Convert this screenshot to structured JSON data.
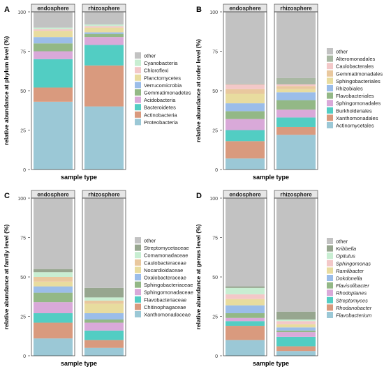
{
  "chart_data": [
    {
      "panel_letter": "A",
      "type": "bar",
      "stacked": true,
      "xlabel": "sample type",
      "ylabel": "relative abundance at phylum level (%)",
      "ylim": [
        0,
        100
      ],
      "yticks": [
        0,
        25,
        50,
        75,
        100
      ],
      "categories": [
        "endosphere",
        "rhizosphere"
      ],
      "legend_position": "right",
      "legend_italic": false,
      "series": [
        {
          "name": "Proteobacteria",
          "color": "#9bc8d6",
          "values": [
            43,
            40
          ]
        },
        {
          "name": "Actinobacteria",
          "color": "#d99a7e",
          "values": [
            9,
            26
          ]
        },
        {
          "name": "Bacteroidetes",
          "color": "#52cdc3",
          "values": [
            18,
            13
          ]
        },
        {
          "name": "Acidobacteria",
          "color": "#d9a9d9",
          "values": [
            5,
            5
          ]
        },
        {
          "name": "Gemmatimonadetes",
          "color": "#93b886",
          "values": [
            5,
            2
          ]
        },
        {
          "name": "Verrucomicrobia",
          "color": "#9bbde9",
          "values": [
            4,
            1
          ]
        },
        {
          "name": "Planctomycetes",
          "color": "#e8dc9f",
          "values": [
            4,
            3
          ]
        },
        {
          "name": "Chloroflexi",
          "color": "#f3c8c8",
          "values": [
            1,
            1
          ]
        },
        {
          "name": "Cyanobacteria",
          "color": "#c8eed2",
          "values": [
            1,
            1
          ]
        },
        {
          "name": "other",
          "color": "#c2c2c2",
          "values": [
            10,
            8
          ]
        }
      ]
    },
    {
      "panel_letter": "B",
      "type": "bar",
      "stacked": true,
      "xlabel": "sample type",
      "ylabel": "relative abundance at order level (%)",
      "ylim": [
        0,
        100
      ],
      "yticks": [
        0,
        25,
        50,
        75,
        100
      ],
      "categories": [
        "endosphere",
        "rhizosphere"
      ],
      "legend_position": "right",
      "legend_italic": false,
      "series": [
        {
          "name": "Actinomycetales",
          "color": "#9bc8d6",
          "values": [
            7,
            22
          ]
        },
        {
          "name": "Xanthomonadales",
          "color": "#d99a7e",
          "values": [
            11,
            5
          ]
        },
        {
          "name": "Burkholderiales",
          "color": "#52cdc3",
          "values": [
            7,
            6
          ]
        },
        {
          "name": "Sphingomonadales",
          "color": "#d9a9d9",
          "values": [
            7,
            5
          ]
        },
        {
          "name": "Flavobacteriales",
          "color": "#93b886",
          "values": [
            5,
            6
          ]
        },
        {
          "name": "Rhizobiales",
          "color": "#9bbde9",
          "values": [
            5,
            5
          ]
        },
        {
          "name": "Sphingobacteriales",
          "color": "#e8dc9f",
          "values": [
            6,
            2
          ]
        },
        {
          "name": "Gemmatimonadales",
          "color": "#e9c89e",
          "values": [
            3,
            2
          ]
        },
        {
          "name": "Caulobacterales",
          "color": "#f3c8c8",
          "values": [
            3,
            1
          ]
        },
        {
          "name": "Alteromonadales",
          "color": "#a9b8a3",
          "values": [
            0.5,
            4
          ]
        },
        {
          "name": "other",
          "color": "#c2c2c2",
          "values": [
            45.5,
            42
          ]
        }
      ]
    },
    {
      "panel_letter": "C",
      "type": "bar",
      "stacked": true,
      "xlabel": "sample type",
      "ylabel": "relative abundance at family level (%)",
      "ylim": [
        0,
        100
      ],
      "yticks": [
        0,
        25,
        50,
        75,
        100
      ],
      "categories": [
        "endosphere",
        "rhizosphere"
      ],
      "legend_position": "right",
      "legend_italic": false,
      "series": [
        {
          "name": "Xanthomonadaceae",
          "color": "#9bc8d6",
          "values": [
            11,
            5
          ]
        },
        {
          "name": "Chitinophagaceae",
          "color": "#d99a7e",
          "values": [
            10,
            5
          ]
        },
        {
          "name": "Flavobacteriaceae",
          "color": "#52cdc3",
          "values": [
            6,
            6
          ]
        },
        {
          "name": "Sphingomonadaceae",
          "color": "#d9a9d9",
          "values": [
            7,
            5
          ]
        },
        {
          "name": "Sphingobacteriaceae",
          "color": "#93b886",
          "values": [
            6,
            2
          ]
        },
        {
          "name": "Oxalobacteraceae",
          "color": "#9bbde9",
          "values": [
            4,
            4
          ]
        },
        {
          "name": "Nocardioidaceae",
          "color": "#e8dc9f",
          "values": [
            3,
            6
          ]
        },
        {
          "name": "Caulobacteraceae",
          "color": "#e9c89e",
          "values": [
            3,
            2
          ]
        },
        {
          "name": "Comamonadaceae",
          "color": "#c8eed2",
          "values": [
            3,
            2
          ]
        },
        {
          "name": "Streptomycetaceae",
          "color": "#97a68f",
          "values": [
            2,
            6
          ]
        },
        {
          "name": "other",
          "color": "#c2c2c2",
          "values": [
            45,
            57
          ]
        }
      ]
    },
    {
      "panel_letter": "D",
      "type": "bar",
      "stacked": true,
      "xlabel": "sample type",
      "ylabel": "relative abundance at genus level (%)",
      "ylim": [
        0,
        100
      ],
      "yticks": [
        0,
        25,
        50,
        75,
        100
      ],
      "categories": [
        "endosphere",
        "rhizosphere"
      ],
      "legend_position": "right",
      "legend_italic": true,
      "series": [
        {
          "name": "Flavobacterium",
          "color": "#9bc8d6",
          "values": [
            10,
            3
          ]
        },
        {
          "name": "Rhodanobacter",
          "color": "#d99a7e",
          "values": [
            9,
            3
          ]
        },
        {
          "name": "Streptomyces",
          "color": "#52cdc3",
          "values": [
            3,
            6
          ]
        },
        {
          "name": "Rhodoplanes",
          "color": "#d9a9d9",
          "values": [
            2,
            3
          ]
        },
        {
          "name": "Flavisolibacter",
          "color": "#93b886",
          "values": [
            3,
            1
          ]
        },
        {
          "name": "Dokdonella",
          "color": "#9bbde9",
          "values": [
            5,
            2
          ]
        },
        {
          "name": "Ramlibacter",
          "color": "#e8dc9f",
          "values": [
            4,
            2
          ]
        },
        {
          "name": "Sphingomonas",
          "color": "#f3c8c8",
          "values": [
            3,
            2
          ]
        },
        {
          "name": "Opitutus",
          "color": "#c8eed2",
          "values": [
            4,
            1
          ]
        },
        {
          "name": "Kribbella",
          "color": "#97a68f",
          "values": [
            1,
            5
          ]
        },
        {
          "name": "other",
          "color": "#c2c2c2",
          "values": [
            56,
            72
          ]
        }
      ]
    }
  ]
}
